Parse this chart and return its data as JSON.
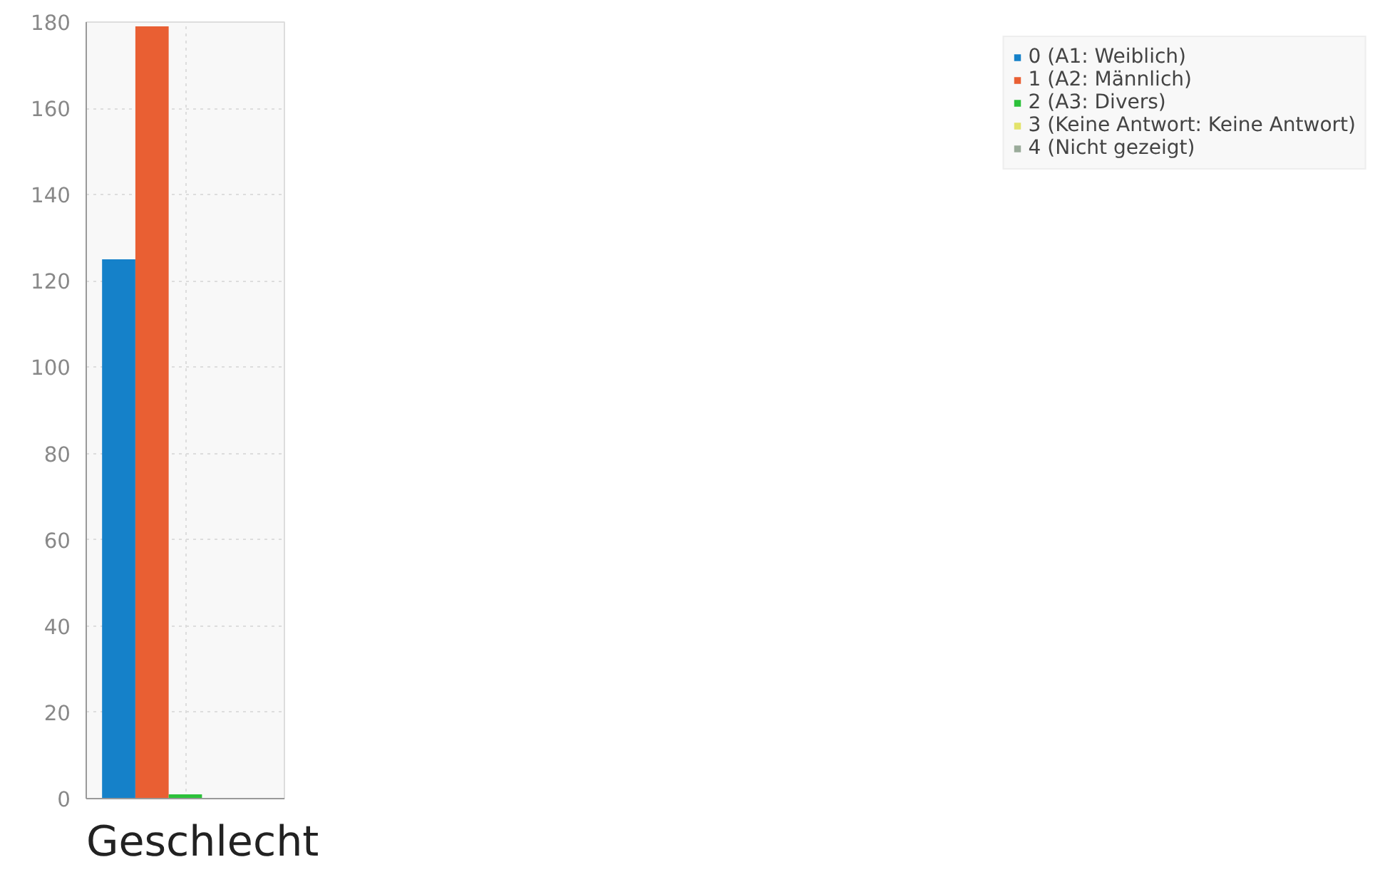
{
  "chart_data": {
    "type": "bar",
    "title": "Geschlecht",
    "categories": [
      null
    ],
    "series": [
      {
        "name": "0 (A1: Weiblich)",
        "color": "#1581c9",
        "values": [
          125
        ]
      },
      {
        "name": "1 (A2: Männlich)",
        "color": "#e95f33",
        "values": [
          179
        ]
      },
      {
        "name": "2 (A3: Divers)",
        "color": "#2cc13a",
        "values": [
          1
        ]
      },
      {
        "name": "3 (Keine Antwort: Keine Antwort)",
        "color": "#e3e36a",
        "values": [
          0
        ]
      },
      {
        "name": "4 (Nicht gezeigt)",
        "color": "#9aab9a",
        "values": [
          0
        ]
      }
    ],
    "ylim": [
      0,
      180
    ],
    "yticks": [
      0,
      20,
      40,
      60,
      80,
      100,
      120,
      140,
      160,
      180
    ],
    "grid": true,
    "legend": "top right",
    "tick_labels": "y"
  }
}
